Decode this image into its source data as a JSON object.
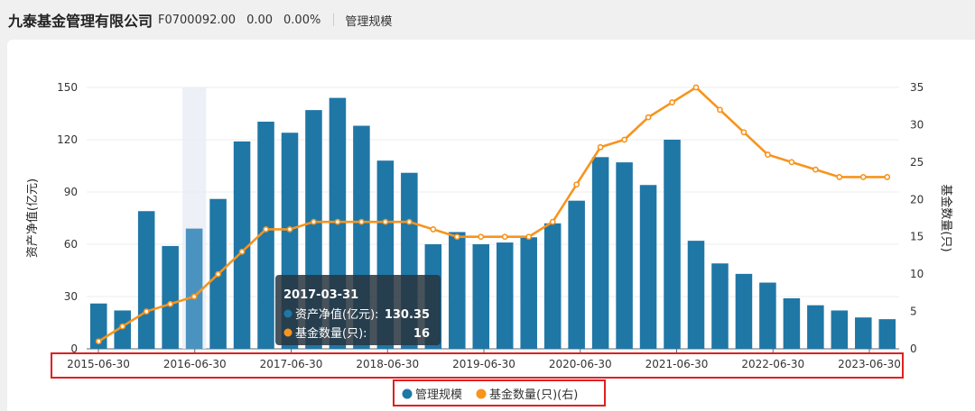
{
  "header": {
    "title": "九泰基金管理有限公司",
    "code": "F0700092.00",
    "change": "0.00",
    "change_pct": "0.00%",
    "subtitle": "管理规模"
  },
  "chart_data": {
    "type": "bar",
    "x_tick_labels": [
      "2015-06-30",
      "2016-06-30",
      "2017-06-30",
      "2018-06-30",
      "2019-06-30",
      "2020-06-30",
      "2021-06-30",
      "2022-06-30",
      "2023-06-30"
    ],
    "series": [
      {
        "name": "管理规模",
        "type": "bar",
        "axis": "left",
        "color": "#1f77a6",
        "values": [
          26,
          22,
          79,
          59,
          69,
          86,
          119,
          130.35,
          124,
          137,
          144,
          128,
          108,
          101,
          60,
          67,
          60,
          61,
          64,
          72,
          85,
          110,
          107,
          94,
          120,
          62,
          49,
          43,
          38,
          29,
          25,
          22,
          18,
          17
        ]
      },
      {
        "name": "基金数量(只)(右)",
        "type": "line",
        "axis": "right",
        "color": "#f7941d",
        "values": [
          1,
          3,
          5,
          6,
          7,
          10,
          13,
          16,
          16,
          17,
          17,
          17,
          17,
          17,
          16,
          15,
          15,
          15,
          15,
          17,
          22,
          27,
          28,
          31,
          33,
          35,
          32,
          29,
          26,
          25,
          24,
          23,
          23,
          23
        ]
      }
    ],
    "ylabel_left": "资产净值(亿元)",
    "ylabel_right": "基金数量(只)",
    "ylim_left": [
      0,
      150
    ],
    "yticks_left": [
      0,
      30,
      60,
      90,
      120,
      150
    ],
    "ylim_right": [
      0,
      35
    ],
    "yticks_right": [
      0,
      5,
      10,
      15,
      20,
      25,
      30,
      35
    ],
    "grid": true,
    "legend_position": "bottom-center",
    "highlight_index": 4,
    "tooltip": {
      "title": "2017-03-31",
      "rows": [
        {
          "label": "资产净值(亿元):",
          "value": "130.35",
          "color": "#1f77a6"
        },
        {
          "label": "基金数量(只):",
          "value": "16",
          "color": "#f7941d"
        }
      ]
    },
    "annotation_color": "#e02020"
  }
}
